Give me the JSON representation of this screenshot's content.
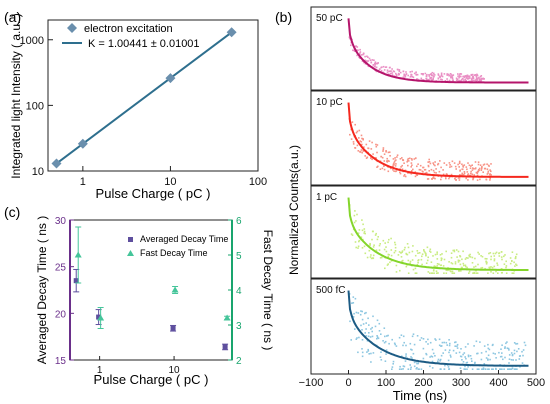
{
  "panel_labels": [
    "(a)",
    "(b)",
    "(c)"
  ],
  "colors": {
    "a_marker": "#6a8fad",
    "a_line": "#2e6f8e",
    "c_avg": "#5e4f9e",
    "c_fast": "#45c59a",
    "c_left_axis": "#6a2f8a",
    "c_right_axis": "#19a56e",
    "b_series": [
      "#b5156b",
      "#f5281e",
      "#84d52b",
      "#1c5b84"
    ],
    "b_scatter": [
      "#e98fc4",
      "#f79386",
      "#c9ec82",
      "#8ec7e1"
    ]
  },
  "chart_data": [
    {
      "id": "a",
      "type": "scatter",
      "xscale": "log",
      "yscale": "log",
      "xlim": [
        0.4,
        100
      ],
      "ylim": [
        10,
        2000
      ],
      "xlabel": "Pulse Charge ( pC )",
      "ylabel": "Integrated light Intensity ( a.u. )",
      "xtick_labels": [
        "1",
        "10",
        "100"
      ],
      "ytick_labels": [
        "10",
        "100",
        "1000"
      ],
      "legend": {
        "placement": "top-left",
        "entries": [
          "electron excitation",
          "K = 1.00441 ± 0.01001"
        ]
      },
      "series": [
        {
          "name": "electron excitation",
          "x": [
            0.5,
            1,
            10,
            50
          ],
          "y": [
            13,
            26,
            260,
            1300
          ]
        }
      ],
      "fit": {
        "name": "K = 1.00441 ± 0.01001",
        "slope": 1.00441,
        "x": [
          0.5,
          50
        ],
        "y": [
          13,
          1300
        ]
      }
    },
    {
      "id": "b",
      "type": "line",
      "xlabel": "Time (ns)",
      "ylabel": "Normalized Counts(a.u.)",
      "xlim": [
        -100,
        500
      ],
      "xtick_labels": [
        "−100",
        "0",
        "100",
        "200",
        "300",
        "400",
        "500"
      ],
      "subplots": [
        {
          "label": "50 pC",
          "tau": 60,
          "tail": 360,
          "baseline": 0.05
        },
        {
          "label": "10 pC",
          "tau": 70,
          "tail": 380,
          "baseline": 0.05
        },
        {
          "label": "1 pC",
          "tau": 75,
          "tail": 450,
          "baseline": 0.05
        },
        {
          "label": "500 fC",
          "tau": 80,
          "tail": 470,
          "baseline": 0.05
        }
      ]
    },
    {
      "id": "c",
      "type": "scatter",
      "xscale": "log",
      "xlim": [
        0.4,
        60
      ],
      "xlabel": "Pulse Charge ( pC )",
      "ylabel_left": "Averaged Decay Time ( ns )",
      "ylabel_right": "Fast Decay Time ( ns )",
      "ylim_left": [
        15,
        30
      ],
      "ylim_right": [
        2,
        6
      ],
      "xtick_labels": [
        "10",
        "1"
      ],
      "ytick_left": [
        "15",
        "20",
        "25",
        "30"
      ],
      "ytick_right": [
        "2",
        "3",
        "4",
        "5",
        "6"
      ],
      "legend": {
        "placement": "top-right",
        "entries": [
          "Averaged Decay Time",
          "Fast Decay Time"
        ]
      },
      "series": [
        {
          "name": "Averaged Decay Time",
          "axis": "left",
          "x": [
            0.5,
            1,
            10,
            50
          ],
          "y": [
            23.5,
            19.6,
            18.4,
            16.4
          ],
          "err": [
            1.2,
            0.8,
            0.3,
            0.3
          ]
        },
        {
          "name": "Fast Decay Time",
          "axis": "right",
          "x": [
            0.5,
            1,
            10,
            50
          ],
          "y": [
            5.0,
            3.2,
            4.0,
            3.2
          ],
          "err": [
            0.8,
            0.3,
            0.1,
            0.05
          ]
        }
      ]
    }
  ]
}
